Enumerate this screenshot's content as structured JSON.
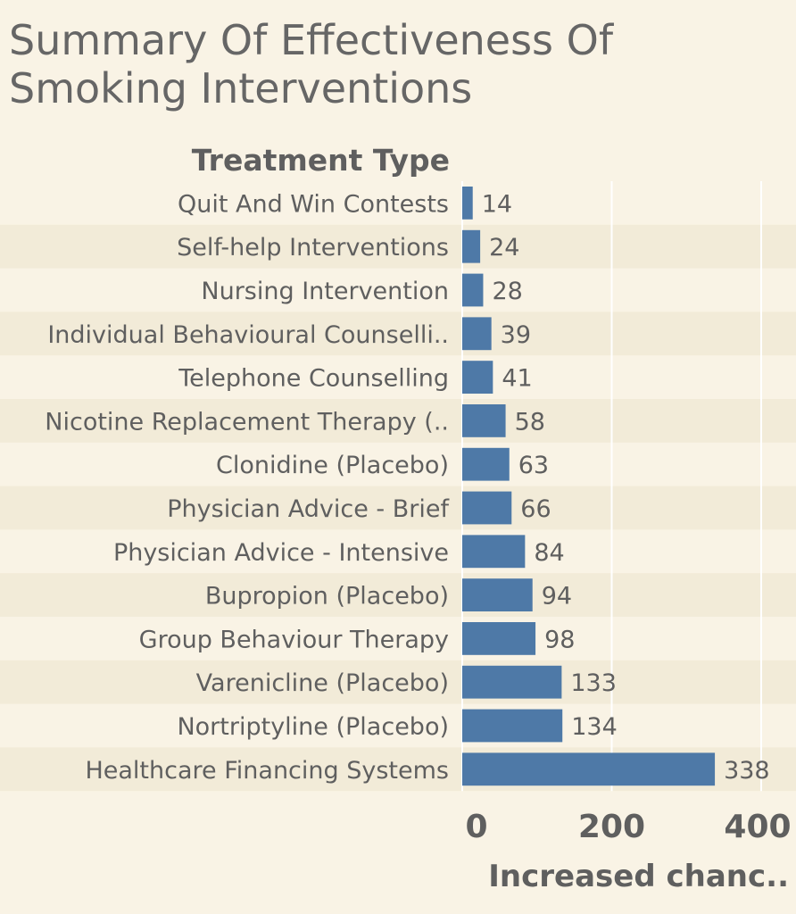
{
  "chart_data": {
    "type": "bar",
    "orientation": "horizontal",
    "title": "Summary Of Effectiveness Of Smoking Interventions",
    "row_header": "Treatment Type",
    "xlabel": "Increased chanc..",
    "xlim": [
      0,
      400
    ],
    "xticks": [
      "0",
      "200",
      "400"
    ],
    "xtick_values": [
      0,
      200,
      400
    ],
    "grid": true,
    "categories": [
      "Quit And Win Contests",
      "Self-help Interventions",
      "Nursing Intervention",
      "Individual Behavioural Counselli..",
      "Telephone Counselling",
      "Nicotine Replacement Therapy (..",
      "Clonidine (Placebo)",
      "Physician Advice - Brief",
      "Physician Advice - Intensive",
      "Bupropion (Placebo)",
      "Group Behaviour Therapy",
      "Varenicline (Placebo)",
      "Nortriptyline (Placebo)",
      "Healthcare Financing Systems"
    ],
    "values": [
      14,
      24,
      28,
      39,
      41,
      58,
      63,
      66,
      84,
      94,
      98,
      133,
      134,
      338
    ],
    "colors": {
      "bar": "#4e79a7",
      "band": "#f2ebd8",
      "background": "#f9f3e5",
      "grid": "#ffffff",
      "text": "#5f5f5f"
    }
  }
}
